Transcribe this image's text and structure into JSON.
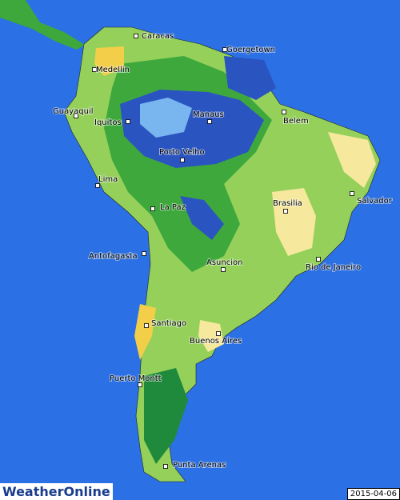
{
  "map": {
    "cities": [
      "Caracas",
      "Goergetown",
      "Medellin",
      "Guayaquil",
      "Iquitos",
      "Manaus",
      "Belem",
      "Porto Velho",
      "Lima",
      "Salvador",
      "Brasilia",
      "La Paz",
      "Antofagasta",
      "Rio de Janeiro",
      "Asuncion",
      "Santiago",
      "Buenos Aires",
      "Puerto Montt",
      "Punta Arenas"
    ],
    "logo": "WeatherOnline",
    "date": "2015-04-06"
  }
}
